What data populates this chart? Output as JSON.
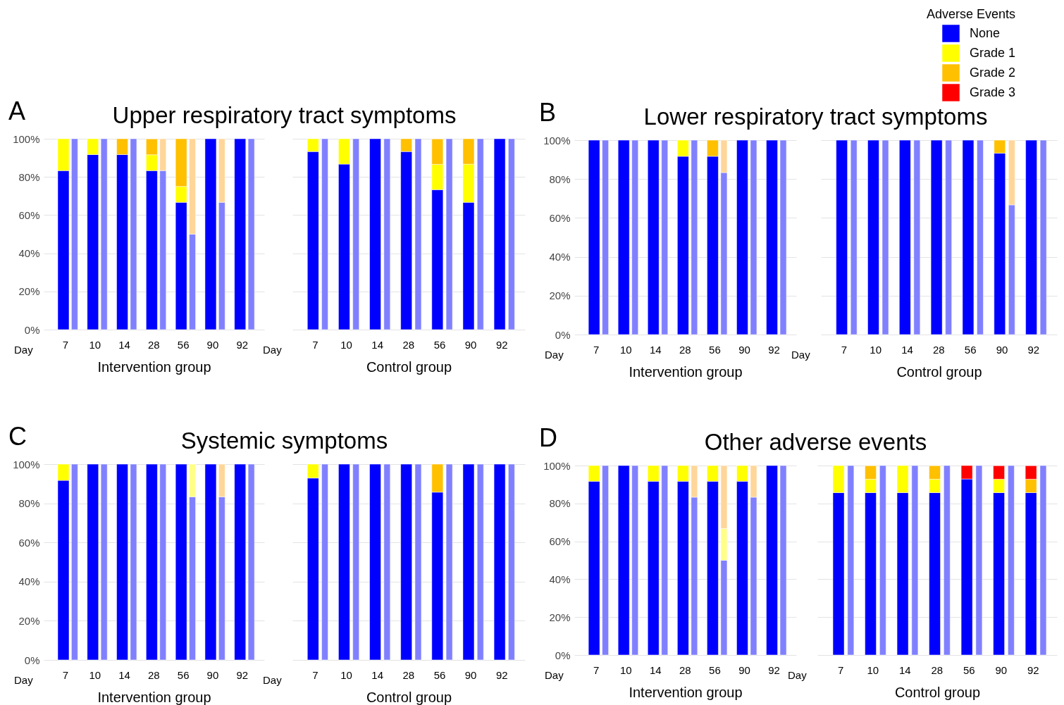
{
  "chart_data": [
    {
      "type": "bar",
      "stacked": true,
      "title": "Upper respiratory tract symptoms",
      "xlabel": "Intervention group",
      "annotations": [
        "A",
        "Day"
      ],
      "categories": [
        "7",
        null,
        "10",
        null,
        "14",
        null,
        "28",
        null,
        "56",
        null,
        "90",
        null,
        "92",
        null
      ],
      "ylim": [
        0,
        100
      ],
      "yticks": [
        {
          "value": 0,
          "label": "0%"
        },
        {
          "value": 20,
          "label": "20%"
        },
        {
          "value": 40,
          "label": "40%"
        },
        {
          "value": 60,
          "label": "60%"
        },
        {
          "value": 80,
          "label": "80%"
        },
        {
          "value": 100,
          "label": "100%"
        }
      ],
      "grid": "y",
      "series": [
        {
          "color": "#0000ff",
          "colors": [
            "#0000ff",
            "#8080ff",
            "#0000ff",
            "#8080ff",
            "#0000ff",
            "#8080ff",
            "#0000ff",
            "#8080ff",
            "#0000ff",
            "#8080ff",
            "#0000ff",
            "#8080ff",
            "#0000ff",
            "#8080ff"
          ],
          "values": [
            83.3,
            100,
            91.7,
            100,
            91.7,
            100,
            83.3,
            83.3,
            66.7,
            50,
            100,
            66.7,
            100,
            100
          ]
        },
        {
          "color": "#ffff00",
          "colors": [
            "#ffff00",
            "#ffff88",
            "#ffff00",
            "#ffff88",
            "#ffff00",
            "#ffff88",
            "#ffff00",
            "#ffff88",
            "#ffff00",
            "#ffff88",
            "#ffff00",
            "#ffff88",
            "#ffff00",
            "#ffff88"
          ],
          "values": [
            16.7,
            null,
            8.3,
            null,
            null,
            null,
            8.3,
            null,
            8.3,
            null,
            null,
            null,
            null,
            null
          ]
        },
        {
          "color": "#ffc000",
          "colors": [
            "#ffc000",
            "#ffd699",
            "#ffc000",
            "#ffd699",
            "#ffc000",
            "#ffd699",
            "#ffc000",
            "#ffd699",
            "#ffc000",
            "#ffd699",
            "#ffc000",
            "#ffd699",
            "#ffc000",
            "#ffd699"
          ],
          "values": [
            null,
            null,
            null,
            null,
            8.3,
            null,
            8.3,
            16.7,
            25,
            50,
            null,
            33.3,
            null,
            null
          ]
        }
      ]
    },
    {
      "type": "bar",
      "stacked": true,
      "xlabel": "Control group",
      "annotations": [
        "Day"
      ],
      "categories": [
        "7",
        null,
        "10",
        null,
        "14",
        null,
        "28",
        null,
        "56",
        null,
        "90",
        null,
        "92",
        null
      ],
      "ylim": [
        0,
        100
      ],
      "yticks": [
        0,
        20,
        40,
        60,
        80,
        100
      ],
      "grid": "y",
      "tick_labels": "x",
      "series": [
        {
          "color": "#0000ff",
          "colors": [
            "#0000ff",
            "#8080ff",
            "#0000ff",
            "#8080ff",
            "#0000ff",
            "#8080ff",
            "#0000ff",
            "#8080ff",
            "#0000ff",
            "#8080ff",
            "#0000ff",
            "#8080ff",
            "#0000ff",
            "#8080ff"
          ],
          "values": [
            93.3,
            100,
            86.7,
            100,
            100,
            100,
            93.3,
            100,
            73.3,
            100,
            66.7,
            100,
            100,
            100
          ]
        },
        {
          "color": "#ffff00",
          "colors": [
            "#ffff00",
            "#ffff88",
            "#ffff00",
            "#ffff88",
            "#ffff00",
            "#ffff88",
            "#ffff00",
            "#ffff88",
            "#ffff00",
            "#ffff88",
            "#ffff00",
            "#ffff88",
            "#ffff00",
            "#ffff88"
          ],
          "values": [
            6.7,
            null,
            13.3,
            null,
            null,
            null,
            null,
            null,
            13.3,
            null,
            20,
            null,
            null,
            null
          ]
        },
        {
          "color": "#ffc000",
          "colors": [
            "#ffc000",
            "#ffd699",
            "#ffc000",
            "#ffd699",
            "#ffc000",
            "#ffd699",
            "#ffc000",
            "#ffd699",
            "#ffc000",
            "#ffd699",
            "#ffc000",
            "#ffd699",
            "#ffc000",
            "#ffd699"
          ],
          "values": [
            null,
            null,
            null,
            null,
            null,
            null,
            6.7,
            null,
            13.3,
            null,
            13.3,
            null,
            null,
            null
          ]
        }
      ]
    },
    {
      "type": "bar",
      "stacked": true,
      "title": "Lower respiratory tract symptoms",
      "xlabel": "Intervention group",
      "annotations": [
        "B",
        "Day"
      ],
      "categories": [
        "7",
        null,
        "10",
        null,
        "14",
        null,
        "28",
        null,
        "56",
        null,
        "90",
        null,
        "92",
        null
      ],
      "ylim": [
        0,
        100
      ],
      "yticks": [
        {
          "value": 0,
          "label": "0%"
        },
        {
          "value": 20,
          "label": "20%"
        },
        {
          "value": 40,
          "label": "40%"
        },
        {
          "value": 60,
          "label": "60%"
        },
        {
          "value": 80,
          "label": "80%"
        },
        {
          "value": 100,
          "label": "100%"
        }
      ],
      "grid": "y",
      "series": [
        {
          "color": "#0000ff",
          "colors": [
            "#0000ff",
            "#8080ff",
            "#0000ff",
            "#8080ff",
            "#0000ff",
            "#8080ff",
            "#0000ff",
            "#8080ff",
            "#0000ff",
            "#8080ff",
            "#0000ff",
            "#8080ff",
            "#0000ff",
            "#8080ff"
          ],
          "values": [
            100,
            100,
            100,
            100,
            100,
            100,
            91.7,
            100,
            91.7,
            83.3,
            100,
            100,
            100,
            100
          ]
        },
        {
          "color": "#ffff00",
          "colors": [
            "#ffff00",
            "#ffff88",
            "#ffff00",
            "#ffff88",
            "#ffff00",
            "#ffff88",
            "#ffff00",
            "#ffff88",
            "#ffff00",
            "#ffff88",
            "#ffff00",
            "#ffff88",
            "#ffff00",
            "#ffff88"
          ],
          "values": [
            null,
            null,
            null,
            null,
            null,
            null,
            8.3,
            null,
            null,
            null,
            null,
            null,
            null,
            null
          ]
        },
        {
          "color": "#ffc000",
          "colors": [
            "#ffc000",
            "#ffd699",
            "#ffc000",
            "#ffd699",
            "#ffc000",
            "#ffd699",
            "#ffc000",
            "#ffd699",
            "#ffc000",
            "#ffd699",
            "#ffc000",
            "#ffd699",
            "#ffc000",
            "#ffd699"
          ],
          "values": [
            null,
            null,
            null,
            null,
            null,
            null,
            null,
            null,
            8.3,
            16.7,
            null,
            null,
            null,
            null
          ]
        }
      ]
    },
    {
      "type": "bar",
      "stacked": true,
      "xlabel": "Control group",
      "annotations": [
        "Day"
      ],
      "legend": "top right",
      "legend_title": "Adverse Events",
      "categories": [
        "7",
        null,
        "10",
        null,
        "14",
        null,
        "28",
        null,
        "56",
        null,
        "90",
        null,
        "92",
        null
      ],
      "ylim": [
        0,
        100
      ],
      "yticks": [
        0,
        20,
        40,
        60,
        80,
        100
      ],
      "grid": "y",
      "tick_labels": "x",
      "series": [
        {
          "name": "None",
          "color": "#0000ff",
          "colors": [
            "#0000ff",
            "#8080ff",
            "#0000ff",
            "#8080ff",
            "#0000ff",
            "#8080ff",
            "#0000ff",
            "#8080ff",
            "#0000ff",
            "#8080ff",
            "#0000ff",
            "#8080ff",
            "#0000ff",
            "#8080ff"
          ],
          "values": [
            100,
            100,
            100,
            100,
            100,
            100,
            100,
            100,
            100,
            100,
            93.3,
            66.7,
            100,
            100
          ]
        },
        {
          "name": "Grade 1",
          "color": "#ffff00",
          "values": [
            null,
            null,
            null,
            null,
            null,
            null,
            null,
            null,
            null,
            null,
            null,
            null,
            null,
            null
          ]
        },
        {
          "name": "Grade 2",
          "color": "#ffc000",
          "colors": [
            "#ffc000",
            "#ffd699",
            "#ffc000",
            "#ffd699",
            "#ffc000",
            "#ffd699",
            "#ffc000",
            "#ffd699",
            "#ffc000",
            "#ffd699",
            "#ffc000",
            "#ffd699",
            "#ffc000",
            "#ffd699"
          ],
          "values": [
            null,
            null,
            null,
            null,
            null,
            null,
            null,
            null,
            null,
            null,
            6.7,
            33.3,
            null,
            null
          ]
        },
        {
          "name": "Grade 3",
          "color": "#ff0000",
          "values": [
            null,
            null,
            null,
            null,
            null,
            null,
            null,
            null,
            null,
            null,
            null,
            null,
            null,
            null
          ]
        }
      ]
    },
    {
      "type": "bar",
      "stacked": true,
      "title": "Systemic symptoms",
      "xlabel": "Intervention group",
      "annotations": [
        "C",
        "Day"
      ],
      "categories": [
        "7",
        null,
        "10",
        null,
        "14",
        null,
        "28",
        null,
        "56",
        null,
        "90",
        null,
        "92",
        null
      ],
      "ylim": [
        0,
        100
      ],
      "yticks": [
        {
          "value": 0,
          "label": "0%"
        },
        {
          "value": 20,
          "label": "20%"
        },
        {
          "value": 40,
          "label": "40%"
        },
        {
          "value": 60,
          "label": "60%"
        },
        {
          "value": 80,
          "label": "80%"
        },
        {
          "value": 100,
          "label": "100%"
        }
      ],
      "grid": "y",
      "series": [
        {
          "color": "#0000ff",
          "colors": [
            "#0000ff",
            "#8080ff",
            "#0000ff",
            "#8080ff",
            "#0000ff",
            "#8080ff",
            "#0000ff",
            "#8080ff",
            "#0000ff",
            "#8080ff",
            "#0000ff",
            "#8080ff",
            "#0000ff",
            "#8080ff"
          ],
          "values": [
            91.7,
            100,
            100,
            100,
            100,
            100,
            100,
            100,
            100,
            83.3,
            100,
            83.3,
            100,
            100
          ]
        },
        {
          "color": "#ffff00",
          "colors": [
            "#ffff00",
            "#ffff88",
            "#ffff00",
            "#ffff88",
            "#ffff00",
            "#ffff88",
            "#ffff00",
            "#ffff88",
            "#ffff00",
            "#ffff88",
            "#ffff00",
            "#ffff88",
            "#ffff00",
            "#ffff88"
          ],
          "values": [
            8.3,
            null,
            null,
            null,
            null,
            null,
            null,
            null,
            null,
            16.7,
            null,
            null,
            null,
            null
          ]
        },
        {
          "color": "#ffc000",
          "colors": [
            "#ffc000",
            "#ffd699",
            "#ffc000",
            "#ffd699",
            "#ffc000",
            "#ffd699",
            "#ffc000",
            "#ffd699",
            "#ffc000",
            "#ffd699",
            "#ffc000",
            "#ffd699",
            "#ffc000",
            "#ffd699"
          ],
          "values": [
            null,
            null,
            null,
            null,
            null,
            null,
            null,
            null,
            null,
            null,
            null,
            16.7,
            null,
            null
          ]
        }
      ]
    },
    {
      "type": "bar",
      "stacked": true,
      "xlabel": "Control group",
      "annotations": [
        "Day"
      ],
      "categories": [
        "7",
        null,
        "10",
        null,
        "14",
        null,
        "28",
        null,
        "56",
        null,
        "90",
        null,
        "92",
        null
      ],
      "ylim": [
        0,
        100
      ],
      "yticks": [
        0,
        20,
        40,
        60,
        80,
        100
      ],
      "grid": "y",
      "tick_labels": "x",
      "series": [
        {
          "color": "#0000ff",
          "colors": [
            "#0000ff",
            "#8080ff",
            "#0000ff",
            "#8080ff",
            "#0000ff",
            "#8080ff",
            "#0000ff",
            "#8080ff",
            "#0000ff",
            "#8080ff",
            "#0000ff",
            "#8080ff",
            "#0000ff",
            "#8080ff"
          ],
          "values": [
            92.9,
            100,
            100,
            100,
            100,
            100,
            100,
            100,
            85.7,
            100,
            100,
            100,
            100,
            100
          ]
        },
        {
          "color": "#ffff00",
          "colors": [
            "#ffff00",
            "#ffff88",
            "#ffff00",
            "#ffff88",
            "#ffff00",
            "#ffff88",
            "#ffff00",
            "#ffff88",
            "#ffff00",
            "#ffff88",
            "#ffff00",
            "#ffff88",
            "#ffff00",
            "#ffff88"
          ],
          "values": [
            7.1,
            null,
            null,
            null,
            null,
            null,
            null,
            null,
            null,
            null,
            null,
            null,
            null,
            null
          ]
        },
        {
          "color": "#ffc000",
          "colors": [
            "#ffc000",
            "#ffd699",
            "#ffc000",
            "#ffd699",
            "#ffc000",
            "#ffd699",
            "#ffc000",
            "#ffd699",
            "#ffc000",
            "#ffd699",
            "#ffc000",
            "#ffd699",
            "#ffc000",
            "#ffd699"
          ],
          "values": [
            null,
            null,
            null,
            null,
            null,
            null,
            null,
            null,
            14.3,
            null,
            null,
            null,
            null,
            null
          ]
        }
      ]
    },
    {
      "type": "bar",
      "stacked": true,
      "title": "Other adverse events",
      "xlabel": "Intervention group",
      "annotations": [
        "D",
        "Day"
      ],
      "categories": [
        "7",
        null,
        "10",
        null,
        "14",
        null,
        "28",
        null,
        "56",
        null,
        "90",
        null,
        "92",
        null
      ],
      "ylim": [
        0,
        100
      ],
      "yticks": [
        {
          "value": 0,
          "label": "0%"
        },
        {
          "value": 20,
          "label": "20%"
        },
        {
          "value": 40,
          "label": "40%"
        },
        {
          "value": 60,
          "label": "60%"
        },
        {
          "value": 80,
          "label": "80%"
        },
        {
          "value": 100,
          "label": "100%"
        }
      ],
      "grid": "y",
      "series": [
        {
          "color": "#0000ff",
          "colors": [
            "#0000ff",
            "#8080ff",
            "#0000ff",
            "#8080ff",
            "#0000ff",
            "#8080ff",
            "#0000ff",
            "#8080ff",
            "#0000ff",
            "#8080ff",
            "#0000ff",
            "#8080ff",
            "#0000ff",
            "#8080ff"
          ],
          "values": [
            91.7,
            100,
            100,
            100,
            91.7,
            100,
            91.7,
            83.3,
            91.7,
            50,
            91.7,
            83.3,
            100,
            100
          ]
        },
        {
          "color": "#ffff00",
          "colors": [
            "#ffff00",
            "#ffff88",
            "#ffff00",
            "#ffff88",
            "#ffff00",
            "#ffff88",
            "#ffff00",
            "#ffff88",
            "#ffff00",
            "#ffff88",
            "#ffff00",
            "#ffff88",
            "#ffff00",
            "#ffff88"
          ],
          "values": [
            8.3,
            null,
            null,
            null,
            8.3,
            null,
            8.3,
            null,
            8.3,
            16.7,
            8.3,
            null,
            null,
            null
          ]
        },
        {
          "color": "#ffc000",
          "colors": [
            "#ffc000",
            "#ffd699",
            "#ffc000",
            "#ffd699",
            "#ffc000",
            "#ffd699",
            "#ffc000",
            "#ffd699",
            "#ffc000",
            "#ffd699",
            "#ffc000",
            "#ffd699",
            "#ffc000",
            "#ffd699"
          ],
          "values": [
            null,
            null,
            null,
            null,
            null,
            null,
            null,
            16.7,
            null,
            33.3,
            null,
            16.7,
            null,
            null
          ]
        }
      ]
    },
    {
      "type": "bar",
      "stacked": true,
      "xlabel": "Control group",
      "annotations": [
        "Day"
      ],
      "categories": [
        "7",
        null,
        "10",
        null,
        "14",
        null,
        "28",
        null,
        "56",
        null,
        "90",
        null,
        "92",
        null
      ],
      "ylim": [
        0,
        100
      ],
      "yticks": [
        0,
        20,
        40,
        60,
        80,
        100
      ],
      "grid": "y",
      "tick_labels": "x",
      "series": [
        {
          "color": "#0000ff",
          "colors": [
            "#0000ff",
            "#8080ff",
            "#0000ff",
            "#8080ff",
            "#0000ff",
            "#8080ff",
            "#0000ff",
            "#8080ff",
            "#0000ff",
            "#8080ff",
            "#0000ff",
            "#8080ff",
            "#0000ff",
            "#8080ff"
          ],
          "values": [
            85.7,
            100,
            85.7,
            100,
            85.7,
            100,
            85.7,
            100,
            92.9,
            100,
            85.7,
            100,
            85.7,
            100
          ]
        },
        {
          "color": "#ffff00",
          "colors": [
            "#ffff00",
            "#ffff88",
            "#ffff00",
            "#ffff88",
            "#ffff00",
            "#ffff88",
            "#ffff00",
            "#ffff88",
            "#ffff00",
            "#ffff88",
            "#ffff00",
            "#ffff88",
            "#ffff00",
            "#ffff88"
          ],
          "values": [
            14.3,
            null,
            7.1,
            null,
            14.3,
            null,
            7.1,
            null,
            null,
            null,
            7.1,
            null,
            null,
            null
          ]
        },
        {
          "color": "#ffc000",
          "colors": [
            "#ffc000",
            "#ffd699",
            "#ffc000",
            "#ffd699",
            "#ffc000",
            "#ffd699",
            "#ffc000",
            "#ffd699",
            "#ffc000",
            "#ffd699",
            "#ffc000",
            "#ffd699",
            "#ffc000",
            "#ffd699"
          ],
          "values": [
            null,
            null,
            7.1,
            null,
            null,
            null,
            7.1,
            null,
            null,
            null,
            null,
            null,
            7.1,
            null
          ]
        },
        {
          "color": "#ff0000",
          "colors": [
            "#ff0000",
            "#ff8080",
            "#ff0000",
            "#ff8080",
            "#ff0000",
            "#ff8080",
            "#ff0000",
            "#ff8080",
            "#ff0000",
            "#ff8080",
            "#ff0000",
            "#ff8080",
            "#ff0000",
            "#ff8080"
          ],
          "values": [
            null,
            null,
            null,
            null,
            null,
            null,
            null,
            null,
            7.1,
            null,
            7.1,
            null,
            7.1,
            null
          ]
        }
      ]
    }
  ]
}
